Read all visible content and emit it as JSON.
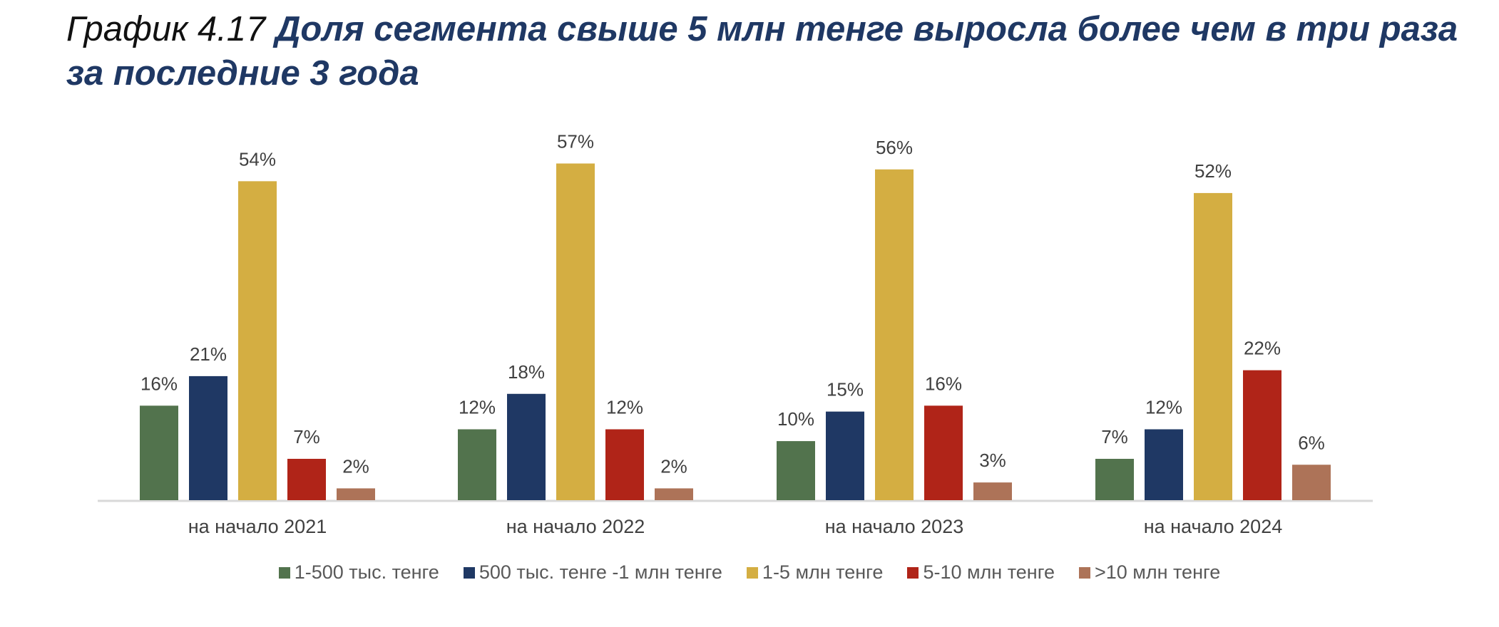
{
  "title": {
    "prefix": "График 4.17",
    "main": "Доля сегмента свыше 5 млн тенге выросла более чем в три раза за последние 3 года"
  },
  "chart_data": {
    "type": "bar",
    "categories": [
      "на начало 2021",
      "на начало 2022",
      "на начало 2023",
      "на начало 2024"
    ],
    "series": [
      {
        "name": "1-500 тыс. тенге",
        "color": "#52734d",
        "values": [
          16,
          12,
          10,
          7
        ]
      },
      {
        "name": "500 тыс. тенге -1 млн тенге",
        "color": "#1f3864",
        "values": [
          21,
          18,
          15,
          12
        ]
      },
      {
        "name": "1-5 млн тенге",
        "color": "#d4ae42",
        "values": [
          54,
          57,
          56,
          52
        ]
      },
      {
        "name": "5-10 млн тенге",
        "color": "#b02418",
        "values": [
          7,
          12,
          16,
          22
        ]
      },
      {
        "name": ">10 млн тенге",
        "color": "#ad7358",
        "values": [
          2,
          2,
          3,
          6
        ]
      }
    ],
    "value_suffix": "%",
    "ylim": [
      0,
      60
    ],
    "grid": false,
    "legend_position": "bottom"
  }
}
